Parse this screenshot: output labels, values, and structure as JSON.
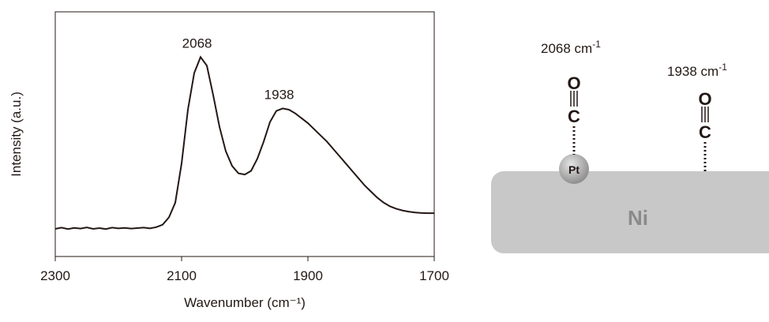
{
  "chart_data": {
    "type": "line",
    "xlabel": "Wavenumber (cm⁻¹)",
    "ylabel": "Intensity (a.u.)",
    "x": [
      2300,
      2290,
      2280,
      2270,
      2260,
      2250,
      2240,
      2230,
      2220,
      2210,
      2200,
      2190,
      2180,
      2170,
      2160,
      2150,
      2140,
      2130,
      2120,
      2110,
      2100,
      2090,
      2080,
      2070,
      2060,
      2050,
      2040,
      2030,
      2020,
      2010,
      2000,
      1990,
      1980,
      1970,
      1960,
      1950,
      1940,
      1930,
      1920,
      1910,
      1900,
      1890,
      1880,
      1870,
      1860,
      1850,
      1840,
      1830,
      1820,
      1810,
      1800,
      1790,
      1780,
      1770,
      1760,
      1750,
      1740,
      1730,
      1720,
      1710,
      1700
    ],
    "series": [
      {
        "color": "#231815",
        "values": [
          0.113,
          0.118,
          0.112,
          0.117,
          0.114,
          0.119,
          0.113,
          0.116,
          0.112,
          0.118,
          0.115,
          0.117,
          0.114,
          0.116,
          0.118,
          0.115,
          0.12,
          0.13,
          0.16,
          0.22,
          0.38,
          0.6,
          0.75,
          0.815,
          0.78,
          0.66,
          0.53,
          0.43,
          0.37,
          0.34,
          0.335,
          0.35,
          0.4,
          0.47,
          0.55,
          0.595,
          0.605,
          0.6,
          0.585,
          0.565,
          0.545,
          0.52,
          0.495,
          0.47,
          0.44,
          0.41,
          0.38,
          0.35,
          0.32,
          0.29,
          0.265,
          0.24,
          0.22,
          0.205,
          0.195,
          0.188,
          0.183,
          0.18,
          0.178,
          0.177,
          0.177
        ]
      }
    ],
    "xlim": [
      2300,
      1700
    ],
    "xticks": [
      2300,
      2100,
      1900,
      1700
    ],
    "ylim": [
      0,
      1
    ],
    "annotations": [
      {
        "text": "2068",
        "x": 2068,
        "y": 0.815
      },
      {
        "text": "1938",
        "x": 1938,
        "y": 0.605
      }
    ]
  },
  "diagram": {
    "labels": [
      "2068 cm",
      "1938 cm"
    ],
    "superscript": "-1",
    "oxygen": "O",
    "carbon": "C",
    "platinum": "Pt",
    "substrate": "Ni"
  }
}
